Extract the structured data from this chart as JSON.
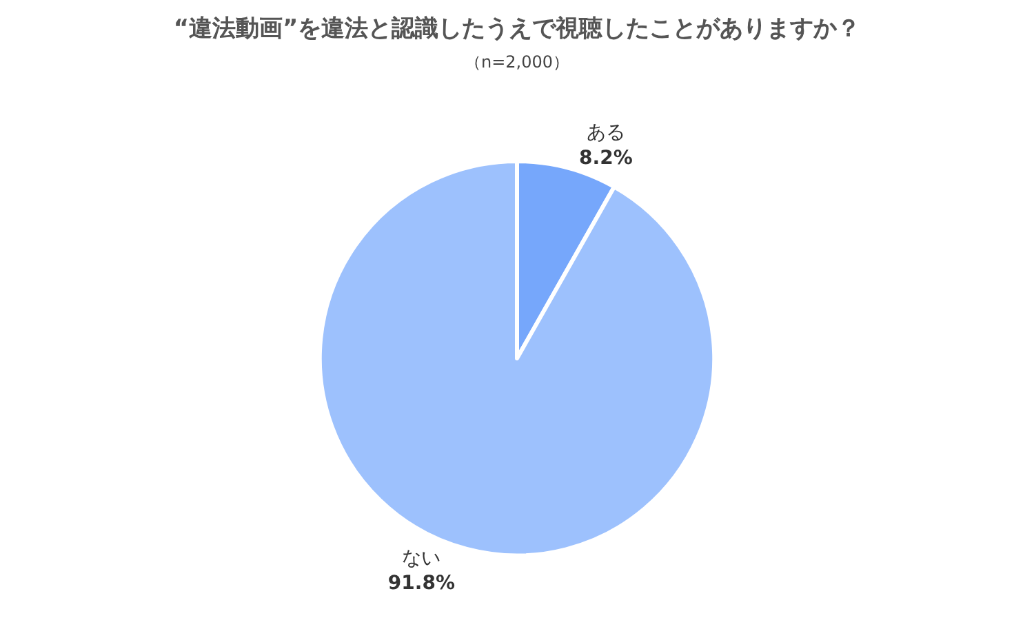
{
  "chart_data": {
    "type": "pie",
    "title": "“違法動画”を違法と認識したうえで視聴したことがありますか？",
    "subtitle": "（n=2,000）",
    "categories": [
      "ある",
      "ない"
    ],
    "values": [
      8.2,
      91.8
    ],
    "value_labels": [
      "8.2%",
      "91.8%"
    ],
    "colors": [
      "#76a7fb",
      "#9dc1fd"
    ],
    "legend": false
  }
}
